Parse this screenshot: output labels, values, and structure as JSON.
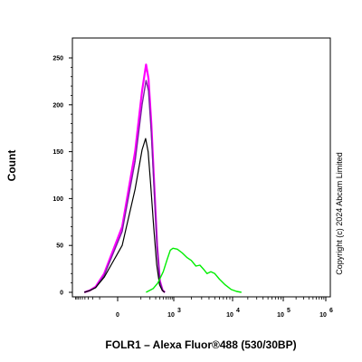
{
  "chart_data": {
    "type": "line",
    "xlabel": "FOLR1 – Alexa Fluor®488 (530/30BP)",
    "ylabel": "Count",
    "copyright": "Copyright (c) 2024 Abcam Limited",
    "x_scale": "biexponential",
    "xlim": [
      -1000,
      1000000
    ],
    "ylim": [
      0,
      260
    ],
    "grid": false,
    "legend": "none",
    "y_ticks": [
      "0",
      "50",
      "100",
      "150",
      "200",
      "250"
    ],
    "x_ticks": [
      {
        "value": 0,
        "base": "0",
        "exp": ""
      },
      {
        "value": 1000,
        "base": "10",
        "exp": "3"
      },
      {
        "value": 10000,
        "base": "10",
        "exp": "4"
      },
      {
        "value": 100000,
        "base": "10",
        "exp": "5"
      },
      {
        "value": 1000000,
        "base": "10",
        "exp": "6"
      }
    ],
    "series": [
      {
        "color": "#ff00ff",
        "width": 2.2,
        "points": [
          [
            -420,
            0
          ],
          [
            -260,
            2
          ],
          [
            -150,
            6
          ],
          [
            -60,
            20
          ],
          [
            10,
            70
          ],
          [
            60,
            150
          ],
          [
            110,
            215
          ],
          [
            150,
            243
          ],
          [
            180,
            228
          ],
          [
            220,
            180
          ],
          [
            270,
            115
          ],
          [
            330,
            50
          ],
          [
            400,
            12
          ],
          [
            480,
            2
          ],
          [
            560,
            0
          ]
        ]
      },
      {
        "color": "#7a1fa2",
        "width": 1.4,
        "points": [
          [
            -420,
            0
          ],
          [
            -260,
            2
          ],
          [
            -150,
            5
          ],
          [
            -60,
            18
          ],
          [
            10,
            65
          ],
          [
            60,
            140
          ],
          [
            110,
            200
          ],
          [
            150,
            226
          ],
          [
            180,
            215
          ],
          [
            220,
            170
          ],
          [
            270,
            108
          ],
          [
            330,
            48
          ],
          [
            400,
            11
          ],
          [
            480,
            2
          ],
          [
            560,
            0
          ]
        ]
      },
      {
        "color": "#000000",
        "width": 1.2,
        "points": [
          [
            -420,
            0
          ],
          [
            -250,
            2
          ],
          [
            -150,
            5
          ],
          [
            -60,
            16
          ],
          [
            10,
            50
          ],
          [
            60,
            110
          ],
          [
            110,
            152
          ],
          [
            145,
            164
          ],
          [
            175,
            150
          ],
          [
            210,
            115
          ],
          [
            260,
            70
          ],
          [
            320,
            30
          ],
          [
            390,
            8
          ],
          [
            470,
            2
          ],
          [
            550,
            0
          ]
        ]
      },
      {
        "color": "#00ee00",
        "width": 1.4,
        "points": [
          [
            150,
            0
          ],
          [
            250,
            4
          ],
          [
            350,
            10
          ],
          [
            500,
            22
          ],
          [
            650,
            35
          ],
          [
            800,
            45
          ],
          [
            950,
            47
          ],
          [
            1150,
            46
          ],
          [
            1400,
            42
          ],
          [
            1700,
            37
          ],
          [
            2000,
            34
          ],
          [
            2400,
            28
          ],
          [
            2800,
            29
          ],
          [
            3200,
            25
          ],
          [
            3700,
            20
          ],
          [
            4300,
            22
          ],
          [
            5000,
            20
          ],
          [
            6000,
            14
          ],
          [
            7500,
            8
          ],
          [
            9500,
            3
          ],
          [
            12000,
            1
          ],
          [
            15000,
            0
          ]
        ]
      }
    ]
  }
}
